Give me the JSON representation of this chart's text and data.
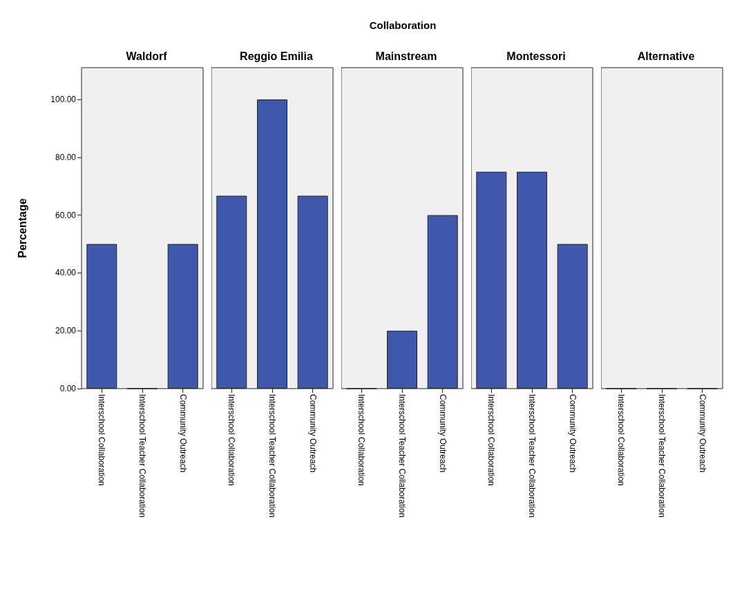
{
  "chart_data": [
    {
      "type": "bar",
      "title": "Waldorf",
      "ylabel": "Percentage",
      "annotations": [
        "Collaboration"
      ],
      "categories": [
        "Interschool Collaboration",
        "Interschool Teacher Collaboration",
        "Community Outreach"
      ],
      "values": [
        50,
        0,
        50
      ],
      "color": "#3f58ac",
      "ylim": [
        0,
        111
      ],
      "yticks": [
        {
          "value": 0,
          "label": "0.00"
        },
        {
          "value": 20,
          "label": "20.00"
        },
        {
          "value": 40,
          "label": "40.00"
        },
        {
          "value": 60,
          "label": "60.00"
        },
        {
          "value": 80,
          "label": "80.00"
        },
        {
          "value": 100,
          "label": "100.00"
        }
      ]
    },
    {
      "type": "bar",
      "title": "Reggio Emilia",
      "categories": [
        "Interschool Collaboration",
        "Interschool Teacher Collaboration",
        "Community Outreach"
      ],
      "values": [
        66.7,
        100,
        66.7
      ],
      "color": "#3f58ac",
      "ylim": [
        0,
        111
      ],
      "tick_labels": "x"
    },
    {
      "type": "bar",
      "title": "Mainstream",
      "categories": [
        "Interschool Collaboration",
        "Interschool Teacher Collaboration",
        "Community Outreach"
      ],
      "values": [
        0,
        20,
        60
      ],
      "color": "#3f58ac",
      "ylim": [
        0,
        111
      ],
      "tick_labels": "x"
    },
    {
      "type": "bar",
      "title": "Montessori",
      "categories": [
        "Interschool Collaboration",
        "Interschool Teacher Collaboration",
        "Community Outreach"
      ],
      "values": [
        75,
        75,
        50
      ],
      "color": "#3f58ac",
      "ylim": [
        0,
        111
      ],
      "tick_labels": "x"
    },
    {
      "type": "bar",
      "title": "Alternative",
      "categories": [
        "Interschool Collaboration",
        "Interschool Teacher Collaboration",
        "Community Outreach"
      ],
      "values": [
        0,
        0,
        0
      ],
      "color": "#3f58ac",
      "ylim": [
        0,
        111
      ],
      "tick_labels": "x"
    }
  ]
}
